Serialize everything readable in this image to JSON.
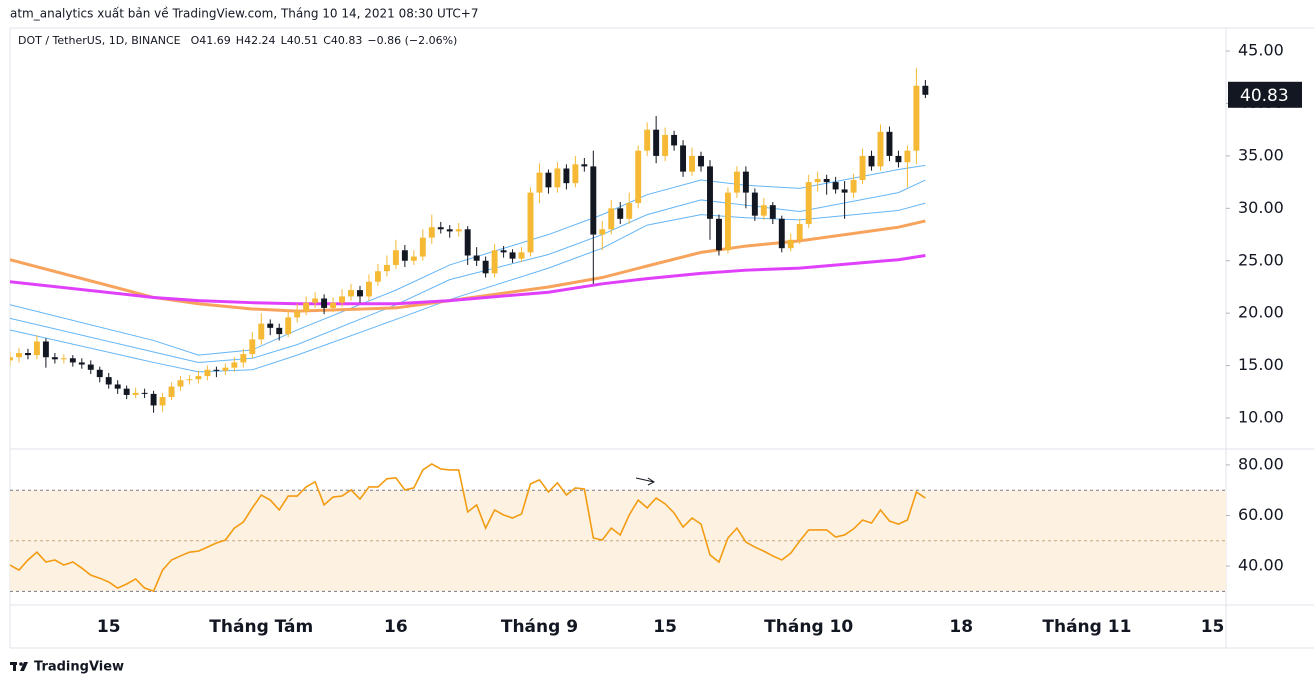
{
  "header": {
    "published": "atm_analytics xuất bản về TradingView.com, Tháng 10 14, 2021 08:30 UTC+7",
    "brand": "TradingView"
  },
  "chart_data": [
    {
      "type": "candlestick",
      "legend": "DOT / TetherUS, 1D, BINANCE",
      "legend_values": [
        "O41.69",
        "H42.24",
        "L40.51",
        "C40.83"
      ],
      "change": "−0.86 (−2.06%)",
      "up_color": "#f5b935",
      "down_color": "#131722",
      "open": [
        15.5,
        15.8,
        16.2,
        16.0,
        17.3,
        15.8,
        15.6,
        15.7,
        15.3,
        15.1,
        14.6,
        13.9,
        13.2,
        12.8,
        12.2,
        12.4,
        12.3,
        11.2,
        12.0,
        13.0,
        13.6,
        13.7,
        14.0,
        14.6,
        14.5,
        14.8,
        15.3,
        16.1,
        17.5,
        19.0,
        18.6,
        18.0,
        19.6,
        20.2,
        21.0,
        21.4,
        20.5,
        21.0,
        21.6,
        22.2,
        21.6,
        23.0,
        24.0,
        24.6,
        26.0,
        25.0,
        25.4,
        27.2,
        28.2,
        28.0,
        27.8,
        28.0,
        25.5,
        25.0,
        23.8,
        26.0,
        25.8,
        25.2,
        25.8,
        31.5,
        33.4,
        32.0,
        33.8,
        32.4,
        34.2,
        34.0,
        27.5,
        28.0,
        30.0,
        29.0,
        30.5,
        35.5,
        37.5,
        35.0,
        37.0,
        36.0,
        33.5,
        35.0,
        34.0,
        29.0,
        26.0,
        31.5,
        33.5,
        31.5,
        29.3,
        30.3,
        29.0,
        26.2,
        27.0,
        28.5,
        32.5,
        32.8,
        32.5,
        31.8,
        31.5,
        32.7,
        35.0,
        34.0,
        37.3,
        35.0,
        34.4,
        35.5,
        41.69
      ],
      "high": [
        16.3,
        16.7,
        16.6,
        17.9,
        17.6,
        16.2,
        16.1,
        16.0,
        15.7,
        15.5,
        14.9,
        14.3,
        13.6,
        13.1,
        12.9,
        12.8,
        12.6,
        12.4,
        13.4,
        14.0,
        14.1,
        14.5,
        15.0,
        14.9,
        15.2,
        15.8,
        16.6,
        18.2,
        20.0,
        19.4,
        19.0,
        20.3,
        20.9,
        21.6,
        22.0,
        21.8,
        21.5,
        22.3,
        22.8,
        22.6,
        23.7,
        24.7,
        25.5,
        27.0,
        26.5,
        26.0,
        28.0,
        29.4,
        28.7,
        28.4,
        28.6,
        28.3,
        26.3,
        25.4,
        26.6,
        26.4,
        26.1,
        26.3,
        32.0,
        34.3,
        33.7,
        34.4,
        34.2,
        35.0,
        34.8,
        35.5,
        28.8,
        30.8,
        30.6,
        31.5,
        36.0,
        38.2,
        38.8,
        37.7,
        37.4,
        36.5,
        35.8,
        35.4,
        34.6,
        29.4,
        32.0,
        34.0,
        34.0,
        31.9,
        31.0,
        30.6,
        29.3,
        27.6,
        29.0,
        33.2,
        33.5,
        33.2,
        33.0,
        32.6,
        33.3,
        35.7,
        35.5,
        38.0,
        37.8,
        35.5,
        36.0,
        43.4,
        42.24
      ],
      "low": [
        15.0,
        15.3,
        15.6,
        15.6,
        14.8,
        15.2,
        15.2,
        14.9,
        14.7,
        14.2,
        13.4,
        12.8,
        12.3,
        11.8,
        11.9,
        11.9,
        10.5,
        10.6,
        11.7,
        12.6,
        13.2,
        13.3,
        13.6,
        13.9,
        14.1,
        14.4,
        14.8,
        15.7,
        17.0,
        17.9,
        17.4,
        17.7,
        19.1,
        19.8,
        20.5,
        19.9,
        20.1,
        20.6,
        21.2,
        21.0,
        21.2,
        22.6,
        23.5,
        24.2,
        24.4,
        24.6,
        25.0,
        26.6,
        27.6,
        27.2,
        27.3,
        24.6,
        24.5,
        23.4,
        23.4,
        25.3,
        24.8,
        24.9,
        25.4,
        30.5,
        31.4,
        31.5,
        31.8,
        32.0,
        33.5,
        22.8,
        26.0,
        27.5,
        28.5,
        28.5,
        30.0,
        35.0,
        34.3,
        34.5,
        35.5,
        33.0,
        33.1,
        33.5,
        27.0,
        25.5,
        25.7,
        31.0,
        30.0,
        28.8,
        28.9,
        28.5,
        25.8,
        25.9,
        26.6,
        28.1,
        31.6,
        31.3,
        31.4,
        29.0,
        31.0,
        32.3,
        33.6,
        33.6,
        34.5,
        33.9,
        32.0,
        34.2,
        40.51
      ],
      "close": [
        15.8,
        16.2,
        16.0,
        17.3,
        15.8,
        15.6,
        15.7,
        15.3,
        15.1,
        14.6,
        13.9,
        13.2,
        12.8,
        12.2,
        12.4,
        12.3,
        11.2,
        12.0,
        13.0,
        13.6,
        13.7,
        14.0,
        14.6,
        14.5,
        14.8,
        15.3,
        16.1,
        17.5,
        19.0,
        18.6,
        18.0,
        19.6,
        20.2,
        21.0,
        21.4,
        20.5,
        21.0,
        21.6,
        22.2,
        21.6,
        23.0,
        24.0,
        24.6,
        26.0,
        25.0,
        25.4,
        27.2,
        28.2,
        28.0,
        27.8,
        28.0,
        25.5,
        25.0,
        23.8,
        26.0,
        25.8,
        25.2,
        25.8,
        31.5,
        33.4,
        32.0,
        33.8,
        32.4,
        34.2,
        34.0,
        27.5,
        28.0,
        30.0,
        29.0,
        30.5,
        35.5,
        37.5,
        35.0,
        37.0,
        36.0,
        33.5,
        35.0,
        34.0,
        29.0,
        26.0,
        31.5,
        33.5,
        31.5,
        29.3,
        30.3,
        29.0,
        26.2,
        27.0,
        28.5,
        32.5,
        32.8,
        32.5,
        31.8,
        31.5,
        32.7,
        35.0,
        34.0,
        37.3,
        35.0,
        34.4,
        35.5,
        41.69,
        40.83
      ],
      "overlays": {
        "x": [
          0,
          16,
          21,
          27,
          32,
          43,
          49,
          60,
          66,
          71,
          77,
          82,
          88,
          99,
          102
        ],
        "series": [
          {
            "color": "#64b5f6",
            "width": 1,
            "values": [
              20.8,
              17.4,
              16.0,
              16.5,
              18.4,
              22.2,
              24.6,
              27.5,
              29.4,
              31.3,
              32.7,
              32.2,
              31.9,
              33.7,
              34.1
            ]
          },
          {
            "color": "#64b5f6",
            "width": 1,
            "values": [
              19.5,
              16.3,
              15.3,
              15.7,
              17.0,
              20.8,
              23.2,
              25.6,
              27.5,
              29.4,
              30.8,
              30.3,
              29.7,
              31.5,
              32.7
            ]
          },
          {
            "color": "#64b5f6",
            "width": 1,
            "values": [
              18.4,
              15.3,
              14.4,
              14.6,
              16.0,
              19.4,
              21.3,
              24.3,
              26.2,
              28.4,
              29.4,
              29.1,
              28.9,
              29.8,
              30.5
            ]
          },
          {
            "color": "#f7a35c",
            "width": 3,
            "values": [
              25.1,
              21.5,
              20.9,
              20.4,
              20.2,
              20.5,
              21.2,
              22.5,
              23.4,
              24.5,
              25.8,
              26.4,
              26.9,
              28.2,
              28.8
            ]
          },
          {
            "color": "#e040fb",
            "width": 3,
            "values": [
              23.0,
              21.5,
              21.2,
              21.0,
              20.9,
              20.9,
              21.2,
              22.0,
              22.8,
              23.3,
              23.8,
              24.1,
              24.3,
              25.1,
              25.5
            ]
          }
        ]
      },
      "xlim": [
        0,
        135.5
      ],
      "xticks": [
        {
          "value": 11,
          "label": "15"
        },
        {
          "value": 28,
          "label": "Tháng Tám"
        },
        {
          "value": 43,
          "label": "16"
        },
        {
          "value": 59,
          "label": "Tháng 9"
        },
        {
          "value": 73,
          "label": "15"
        },
        {
          "value": 89,
          "label": "Tháng 10"
        },
        {
          "value": 106,
          "label": "18"
        },
        {
          "value": 120,
          "label": "Tháng 11"
        },
        {
          "value": 134,
          "label": "15"
        }
      ],
      "ylim": [
        7.14,
        47.2
      ],
      "yticks": [
        {
          "value": 10,
          "label": "10.00"
        },
        {
          "value": 15,
          "label": "15.00"
        },
        {
          "value": 20,
          "label": "20.00"
        },
        {
          "value": 25,
          "label": "25.00"
        },
        {
          "value": 30,
          "label": "30.00"
        },
        {
          "value": 35,
          "label": "35.00"
        },
        {
          "value": 40,
          "label": "40.00"
        },
        {
          "value": 45,
          "label": "45.00"
        }
      ]
    },
    {
      "type": "line",
      "color": "#f39c12",
      "band": [
        30,
        70
      ],
      "midline": 50,
      "band_color": "#fdf1e2",
      "values": [
        40.4,
        38.4,
        42.4,
        45.5,
        41.6,
        42.4,
        40.4,
        41.6,
        39.2,
        36.4,
        35.2,
        33.7,
        31.3,
        32.9,
        34.9,
        31.3,
        30.1,
        38.4,
        42.4,
        44.0,
        45.5,
        45.9,
        47.5,
        49.1,
        50.3,
        55.0,
        57.4,
        63.0,
        68.1,
        66.1,
        62.2,
        67.7,
        67.7,
        71.3,
        73.3,
        64.2,
        67.3,
        67.7,
        70.1,
        66.5,
        71.3,
        71.3,
        74.5,
        74.9,
        70.1,
        70.9,
        78.0,
        80.4,
        78.4,
        78.0,
        78.0,
        61.4,
        64.2,
        55.0,
        62.2,
        60.2,
        59.0,
        60.6,
        72.5,
        74.1,
        69.3,
        72.9,
        68.1,
        70.9,
        70.5,
        51.1,
        50.3,
        55.0,
        52.3,
        60.2,
        66.1,
        63.0,
        66.9,
        64.6,
        61.0,
        55.4,
        59.0,
        56.6,
        44.4,
        41.6,
        51.1,
        55.0,
        49.5,
        47.5,
        45.9,
        44.0,
        42.4,
        45.1,
        49.9,
        54.3,
        54.3,
        54.3,
        51.5,
        52.3,
        54.7,
        58.2,
        57.0,
        62.2,
        57.8,
        56.6,
        58.2,
        69.3,
        66.9
      ],
      "xlim": [
        0,
        135.5
      ],
      "ylim": [
        24.6,
        85.9
      ],
      "yticks": [
        {
          "value": 40,
          "label": "40.00"
        },
        {
          "value": 60,
          "label": "60.00"
        },
        {
          "value": 80,
          "label": "80.00"
        }
      ]
    }
  ]
}
